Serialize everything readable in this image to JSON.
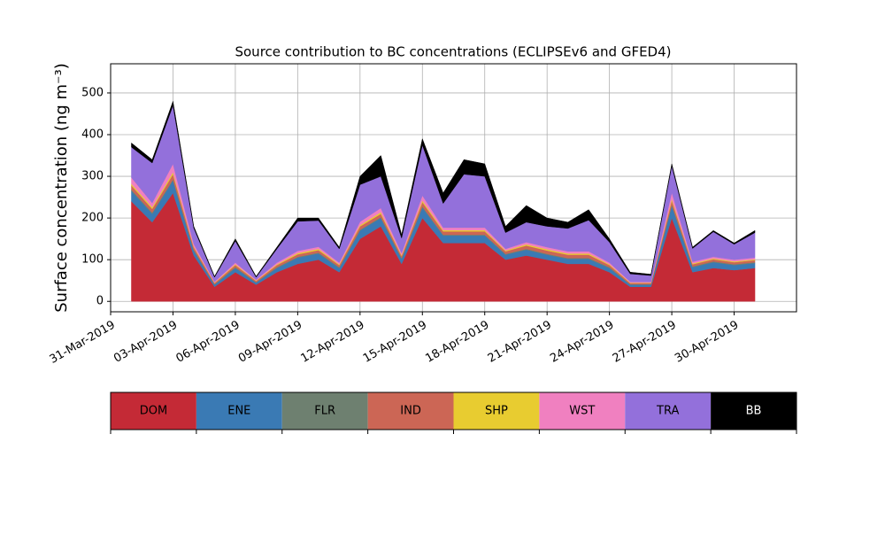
{
  "chart_data": {
    "type": "stacked_area",
    "title": "Source contribution to BC concentrations (ECLIPSEv6 and GFED4)",
    "y_label": "Surface concentration (ng m⁻³)",
    "x": [
      "2019-04-01",
      "2019-04-02",
      "2019-04-03",
      "2019-04-04",
      "2019-04-05",
      "2019-04-06",
      "2019-04-07",
      "2019-04-08",
      "2019-04-09",
      "2019-04-10",
      "2019-04-11",
      "2019-04-12",
      "2019-04-13",
      "2019-04-14",
      "2019-04-15",
      "2019-04-16",
      "2019-04-17",
      "2019-04-18",
      "2019-04-19",
      "2019-04-20",
      "2019-04-21",
      "2019-04-22",
      "2019-04-23",
      "2019-04-24",
      "2019-04-25",
      "2019-04-26",
      "2019-04-27",
      "2019-04-28",
      "2019-04-29",
      "2019-04-30",
      "2019-05-01"
    ],
    "series": [
      {
        "name": "DOM",
        "color": "#c42a36",
        "values": [
          240,
          190,
          260,
          110,
          35,
          70,
          40,
          70,
          90,
          100,
          70,
          150,
          180,
          90,
          200,
          140,
          140,
          140,
          100,
          110,
          100,
          90,
          90,
          70,
          35,
          35,
          200,
          70,
          80,
          75,
          80
        ]
      },
      {
        "name": "ENE",
        "color": "#3a7ab4",
        "values": [
          25,
          20,
          30,
          12,
          5,
          10,
          5,
          10,
          15,
          15,
          10,
          20,
          20,
          12,
          25,
          18,
          18,
          18,
          12,
          14,
          12,
          12,
          12,
          10,
          5,
          5,
          30,
          12,
          14,
          12,
          12
        ]
      },
      {
        "name": "FLR",
        "color": "#6e8070",
        "values": [
          3,
          3,
          3,
          2,
          1,
          2,
          1,
          2,
          2,
          2,
          2,
          2,
          2,
          2,
          3,
          2,
          2,
          2,
          2,
          2,
          2,
          2,
          2,
          2,
          1,
          1,
          2,
          2,
          2,
          2,
          2
        ]
      },
      {
        "name": "IND",
        "color": "#cc6655",
        "values": [
          10,
          9,
          12,
          6,
          3,
          5,
          3,
          5,
          6,
          6,
          5,
          8,
          8,
          5,
          10,
          8,
          8,
          8,
          6,
          8,
          8,
          8,
          8,
          5,
          3,
          3,
          10,
          5,
          5,
          5,
          5
        ]
      },
      {
        "name": "SHP",
        "color": "#e8cc30",
        "values": [
          4,
          4,
          5,
          2,
          1,
          2,
          1,
          2,
          3,
          3,
          2,
          3,
          4,
          2,
          4,
          3,
          3,
          3,
          2,
          3,
          3,
          3,
          3,
          2,
          1,
          1,
          4,
          2,
          2,
          2,
          2
        ]
      },
      {
        "name": "WST",
        "color": "#f080c0",
        "values": [
          15,
          10,
          20,
          6,
          2,
          4,
          2,
          4,
          5,
          5,
          4,
          8,
          10,
          5,
          12,
          6,
          6,
          6,
          4,
          5,
          5,
          5,
          5,
          4,
          2,
          2,
          15,
          4,
          4,
          4,
          4
        ]
      },
      {
        "name": "TRA",
        "color": "#9370db",
        "values": [
          73,
          96,
          140,
          38,
          11,
          52,
          6,
          33,
          71,
          63,
          33,
          89,
          76,
          36,
          121,
          58,
          128,
          123,
          39,
          48,
          50,
          55,
          75,
          49,
          19,
          15,
          64,
          32,
          60,
          37,
          60
        ]
      },
      {
        "name": "BB",
        "color": "#000000",
        "values": [
          10,
          8,
          10,
          4,
          2,
          5,
          2,
          4,
          8,
          6,
          4,
          20,
          50,
          8,
          15,
          25,
          35,
          30,
          15,
          40,
          20,
          15,
          25,
          8,
          4,
          3,
          5,
          3,
          3,
          3,
          5
        ]
      }
    ],
    "xlim": [
      "2019-03-31",
      "2019-05-03"
    ],
    "xticks": [
      {
        "value": "2019-03-31",
        "label": "31-Mar-2019"
      },
      {
        "value": "2019-04-03",
        "label": "03-Apr-2019"
      },
      {
        "value": "2019-04-06",
        "label": "06-Apr-2019"
      },
      {
        "value": "2019-04-09",
        "label": "09-Apr-2019"
      },
      {
        "value": "2019-04-12",
        "label": "12-Apr-2019"
      },
      {
        "value": "2019-04-15",
        "label": "15-Apr-2019"
      },
      {
        "value": "2019-04-18",
        "label": "18-Apr-2019"
      },
      {
        "value": "2019-04-21",
        "label": "21-Apr-2019"
      },
      {
        "value": "2019-04-24",
        "label": "24-Apr-2019"
      },
      {
        "value": "2019-04-27",
        "label": "27-Apr-2019"
      },
      {
        "value": "2019-04-30",
        "label": "30-Apr-2019"
      }
    ],
    "ylim": [
      -25,
      570
    ],
    "yticks": [
      0,
      100,
      200,
      300,
      400,
      500
    ],
    "grid": true
  }
}
